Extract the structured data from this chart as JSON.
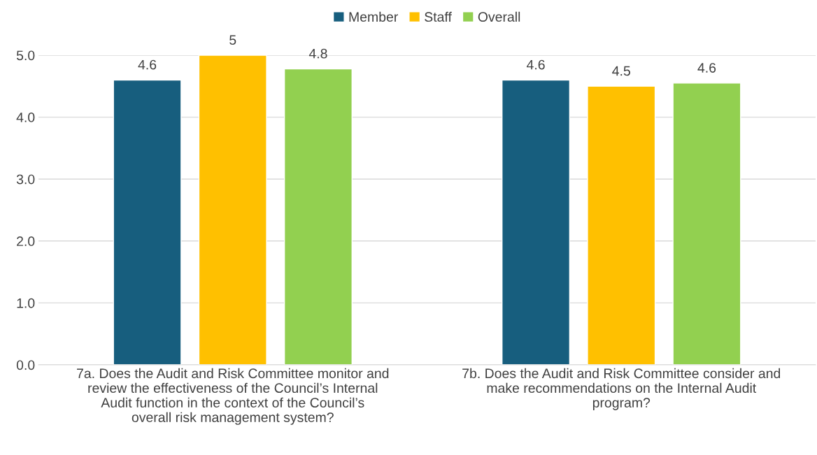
{
  "chart_data": {
    "type": "bar",
    "categories": [
      "7a. Does the Audit and Risk Committee monitor and review the effectiveness of the Council’s Internal Audit function in the context of the Council’s overall risk management system?",
      "7b. Does the Audit and Risk Committee consider and make recommendations on the Internal Audit program?"
    ],
    "series": [
      {
        "name": "Member",
        "color": "#175e7e",
        "values": [
          4.6,
          4.6
        ],
        "value_labels": [
          "4.6",
          "4.6"
        ]
      },
      {
        "name": "Staff",
        "color": "#ffc000",
        "values": [
          5.0,
          4.5
        ],
        "value_labels": [
          "5",
          "4.5"
        ]
      },
      {
        "name": "Overall",
        "color": "#92d050",
        "values": [
          4.78,
          4.55
        ],
        "value_labels": [
          "4.8",
          "4.6"
        ]
      }
    ],
    "ylim": [
      0,
      5.0
    ],
    "yticks": [
      {
        "value": 0,
        "label": "0.0"
      },
      {
        "value": 1,
        "label": "1.0"
      },
      {
        "value": 2,
        "label": "2.0"
      },
      {
        "value": 3,
        "label": "3.0"
      },
      {
        "value": 4,
        "label": "4.0"
      },
      {
        "value": 5,
        "label": "5.0"
      }
    ],
    "grid": "y",
    "legend": "top"
  }
}
